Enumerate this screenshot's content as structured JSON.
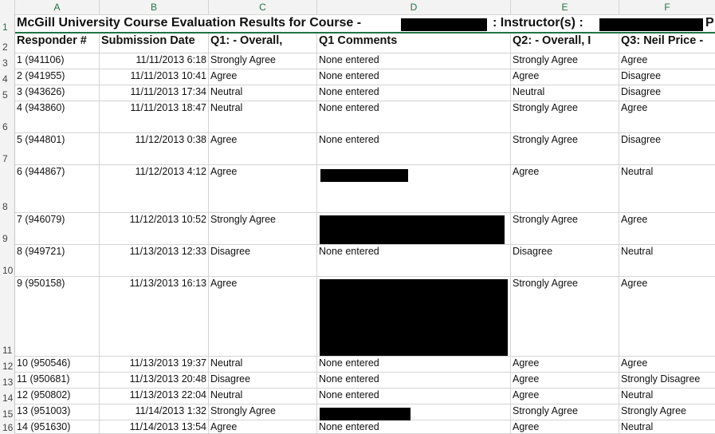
{
  "columns": [
    "A",
    "B",
    "C",
    "D",
    "E",
    "F"
  ],
  "title": {
    "text": "McGill University Course Evaluation Results for Course -",
    "instructor": ": Instructor(s) :",
    "tail": "P"
  },
  "headers": {
    "responder": "Responder #",
    "submission": "Submission Date",
    "q1": "Q1: - Overall,",
    "q1_comments": "Q1 Comments",
    "q2": "Q2: - Overall, I",
    "q3": "Q3: Neil Price -"
  },
  "row_numbers": [
    "1",
    "2",
    "3",
    "4",
    "5",
    "6",
    "7",
    "8",
    "9",
    "10",
    "11",
    "12",
    "13",
    "14",
    "15",
    "16"
  ],
  "rows": [
    {
      "responder": "1 (941106)",
      "date": "11/11/2013 6:18",
      "q1": "Strongly Agree",
      "comment": "None entered",
      "q2": "Strongly Agree",
      "q3": "Agree"
    },
    {
      "responder": "2 (941955)",
      "date": "11/11/2013 10:41",
      "q1": "Agree",
      "comment": "None entered",
      "q2": "Agree",
      "q3": "Disagree"
    },
    {
      "responder": "3 (943626)",
      "date": "11/11/2013 17:34",
      "q1": "Neutral",
      "comment": "None entered",
      "q2": "Neutral",
      "q3": "Disagree"
    },
    {
      "responder": "4 (943860)",
      "date": "11/11/2013 18:47",
      "q1": "Neutral",
      "comment": "None entered",
      "q2": "Strongly Agree",
      "q3": "Agree"
    },
    {
      "responder": "5 (944801)",
      "date": "11/12/2013 0:38",
      "q1": "Agree",
      "comment": "None entered",
      "q2": "Strongly Agree",
      "q3": "Disagree"
    },
    {
      "responder": "6 (944867)",
      "date": "11/12/2013 4:12",
      "q1": "Agree",
      "comment": "",
      "q2": "Agree",
      "q3": "Neutral"
    },
    {
      "responder": "7 (946079)",
      "date": "11/12/2013 10:52",
      "q1": "Strongly Agree",
      "comment": "",
      "q2": "Strongly Agree",
      "q3": "Agree"
    },
    {
      "responder": "8 (949721)",
      "date": "11/13/2013 12:33",
      "q1": "Disagree",
      "comment": "None entered",
      "q2": "Disagree",
      "q3": "Neutral"
    },
    {
      "responder": "9 (950158)",
      "date": "11/13/2013 16:13",
      "q1": "Agree",
      "comment": "",
      "q2": "Strongly Agree",
      "q3": "Agree"
    },
    {
      "responder": "10 (950546)",
      "date": "11/13/2013 19:37",
      "q1": "Neutral",
      "comment": "None entered",
      "q2": "Agree",
      "q3": "Agree"
    },
    {
      "responder": "11 (950681)",
      "date": "11/13/2013 20:48",
      "q1": "Disagree",
      "comment": "None entered",
      "q2": "Agree",
      "q3": "Strongly Disagree"
    },
    {
      "responder": "12 (950802)",
      "date": "11/13/2013 22:04",
      "q1": "Neutral",
      "comment": "None entered",
      "q2": "Agree",
      "q3": "Neutral"
    },
    {
      "responder": "13 (951003)",
      "date": "11/14/2013 1:32",
      "q1": "Strongly Agree",
      "comment": "",
      "q2": "Strongly Agree",
      "q3": "Strongly Agree"
    },
    {
      "responder": "14 (951630)",
      "date": "11/14/2013 13:54",
      "q1": "Agree",
      "comment": "None entered",
      "q2": "Agree",
      "q3": "Neutral"
    }
  ],
  "colors": {
    "accent": "#217346",
    "grid": "#d4d4d4",
    "header_bg": "#f3f3f3"
  }
}
